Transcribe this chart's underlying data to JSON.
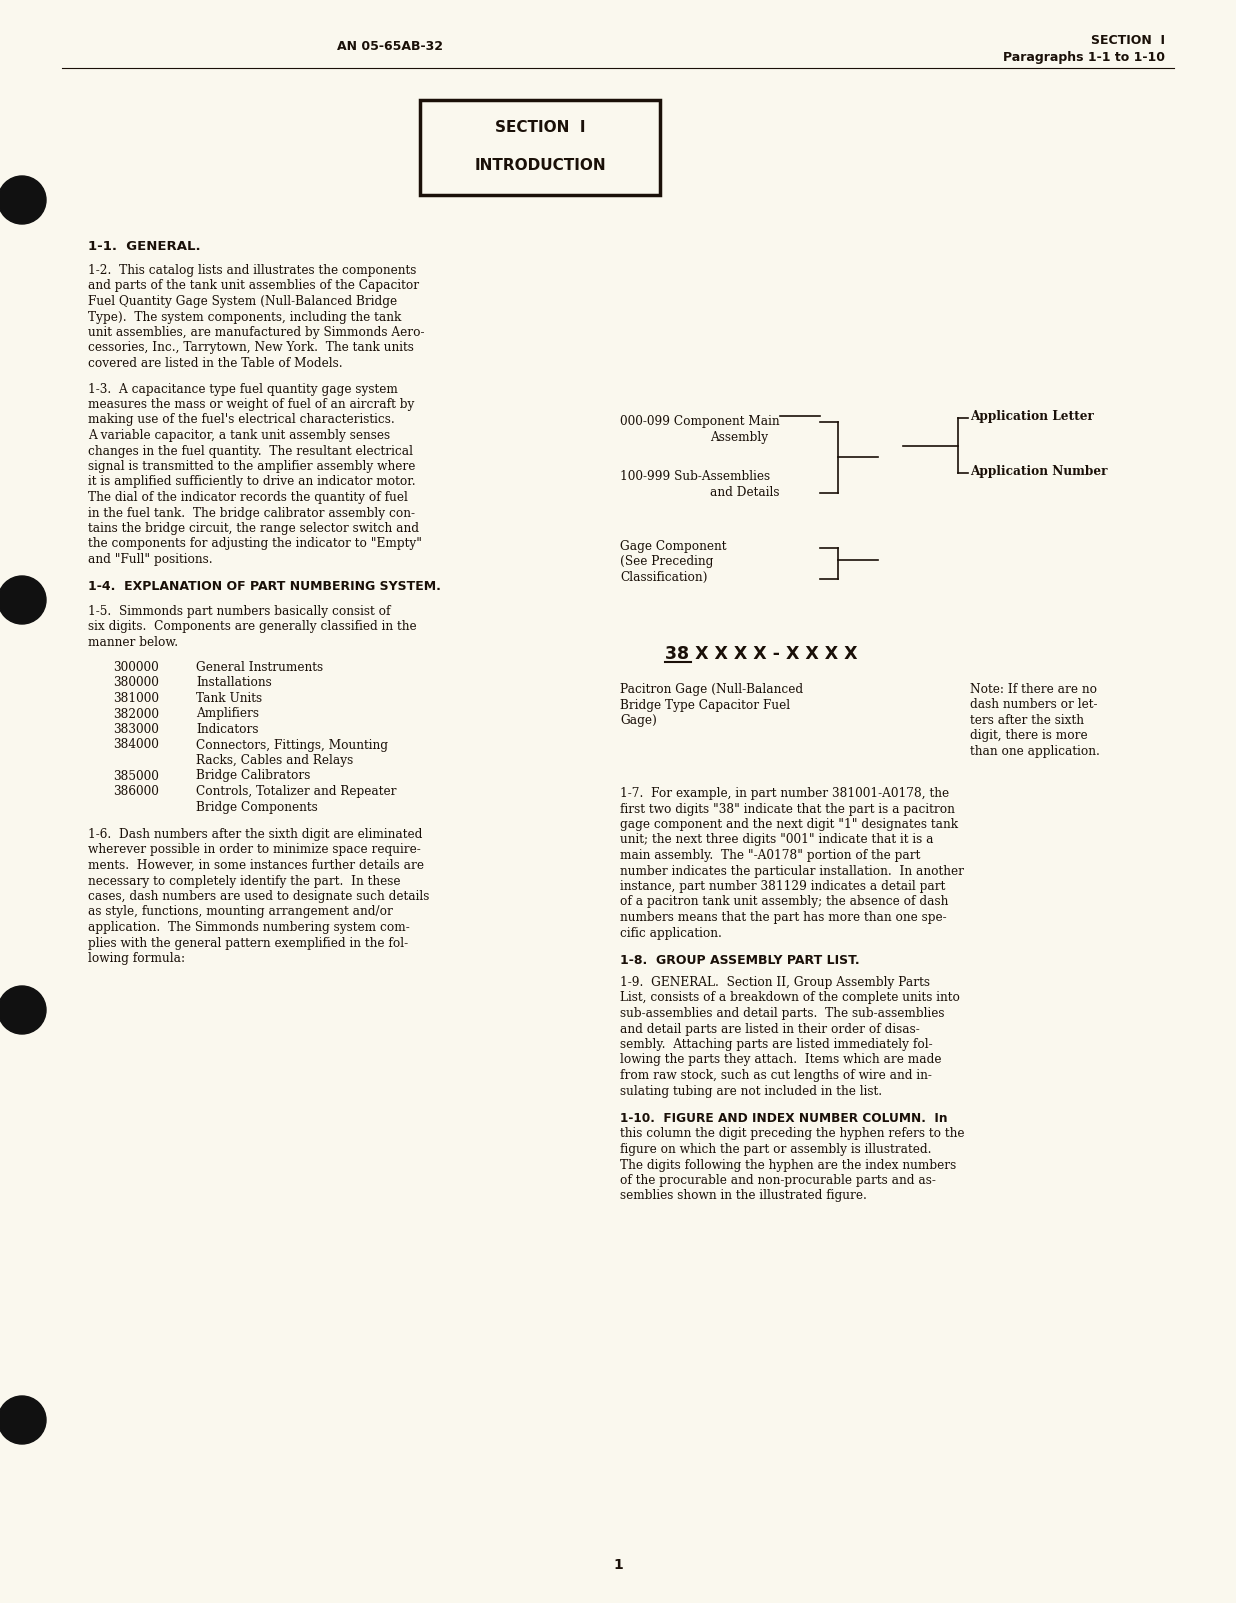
{
  "bg_color": "#FAF8EE",
  "text_color": "#1a1008",
  "header_left": "AN 05-65AB-32",
  "header_right_line1": "SECTION  I",
  "header_right_line2": "Paragraphs 1-1 to 1-10",
  "section_box_line1": "SECTION  I",
  "section_box_line2": "INTRODUCTION",
  "para_1_1_heading": "1-1.  GENERAL.",
  "para_1_2_lines": [
    "1-2.  This catalog lists and illustrates the components",
    "and parts of the tank unit assemblies of the Capacitor",
    "Fuel Quantity Gage System (Null-Balanced Bridge",
    "Type).  The system components, including the tank",
    "unit assemblies, are manufactured by Simmonds Aero-",
    "cessories, Inc., Tarrytown, New York.  The tank units",
    "covered are listed in the Table of Models."
  ],
  "para_1_3_lines": [
    "1-3.  A capacitance type fuel quantity gage system",
    "measures the mass or weight of fuel of an aircraft by",
    "making use of the fuel's electrical characteristics.",
    "A variable capacitor, a tank unit assembly senses",
    "changes in the fuel quantity.  The resultant electrical",
    "signal is transmitted to the amplifier assembly where",
    "it is amplified sufficiently to drive an indicator motor.",
    "The dial of the indicator records the quantity of fuel",
    "in the fuel tank.  The bridge calibrator assembly con-",
    "tains the bridge circuit, the range selector switch and",
    "the components for adjusting the indicator to \"Empty\"",
    "and \"Full\" positions."
  ],
  "para_1_4_heading": "1-4.  EXPLANATION OF PART NUMBERING SYSTEM.",
  "para_1_5_lines": [
    "1-5.  Simmonds part numbers basically consist of",
    "six digits.  Components are generally classified in the",
    "manner below."
  ],
  "part_numbers": [
    [
      "300000",
      "General Instruments",
      false
    ],
    [
      "380000",
      "Installations",
      false
    ],
    [
      "381000",
      "Tank Units",
      false
    ],
    [
      "382000",
      "Amplifiers",
      false
    ],
    [
      "383000",
      "Indicators",
      false
    ],
    [
      "384000",
      "Connectors, Fittings, Mounting",
      true
    ],
    [
      "384000_2",
      "    Racks, Cables and Relays",
      false
    ],
    [
      "385000",
      "Bridge Calibrators",
      false
    ],
    [
      "386000",
      "Controls, Totalizer and Repeater",
      true
    ],
    [
      "386000_2",
      "    Bridge Components",
      false
    ]
  ],
  "para_1_6_lines": [
    "1-6.  Dash numbers after the sixth digit are eliminated",
    "wherever possible in order to minimize space require-",
    "ments.  However, in some instances further details are",
    "necessary to completely identify the part.  In these",
    "cases, dash numbers are used to designate such details",
    "as style, functions, mounting arrangement and/or",
    "application.  The Simmonds numbering system com-",
    "plies with the general pattern exemplified in the fol-",
    "lowing formula:"
  ],
  "diag_top_left_1": "000-099 Component Main",
  "diag_top_left_2": "              Assembly",
  "diag_mid_left_1": "100-999 Sub-Assemblies",
  "diag_mid_left_2": "              and Details",
  "diag_bot_left_1": "Gage Component",
  "diag_bot_left_2": "(See Preceding",
  "diag_bot_left_3": "Classification)",
  "diag_app_letter": "Application Letter",
  "diag_app_number": "Application Number",
  "diag_formula": "38 X X X X - X X X X",
  "diag_paci_1": "Pacitron Gage (Null-Balanced",
  "diag_paci_2": "Bridge Type Capacitor Fuel",
  "diag_paci_3": "Gage)",
  "diag_note_1": "Note: If there are no",
  "diag_note_2": "dash numbers or let-",
  "diag_note_3": "ters after the sixth",
  "diag_note_4": "digit, there is more",
  "diag_note_5": "than one application.",
  "para_1_7_lines": [
    "1-7.  For example, in part number 381001-A0178, the",
    "first two digits \"38\" indicate that the part is a pacitron",
    "gage component and the next digit \"1\" designates tank",
    "unit; the next three digits \"001\" indicate that it is a",
    "main assembly.  The \"-A0178\" portion of the part",
    "number indicates the particular installation.  In another",
    "instance, part number 381129 indicates a detail part",
    "of a pacitron tank unit assembly; the absence of dash",
    "numbers means that the part has more than one spe-",
    "cific application."
  ],
  "para_1_8_heading": "1-8.  GROUP ASSEMBLY PART LIST.",
  "para_1_9_lines": [
    "1-9.  GENERAL.  Section II, Group Assembly Parts",
    "List, consists of a breakdown of the complete units into",
    "sub-assemblies and detail parts.  The sub-assemblies",
    "and detail parts are listed in their order of disas-",
    "sembly.  Attaching parts are listed immediately fol-",
    "lowing the parts they attach.  Items which are made",
    "from raw stock, such as cut lengths of wire and in-",
    "sulating tubing are not included in the list."
  ],
  "para_1_10_head": "1-10.  FIGURE AND INDEX NUMBER COLUMN.  In",
  "para_1_10_lines": [
    "this column the digit preceding the hyphen refers to the",
    "figure on which the part or assembly is illustrated.",
    "The digits following the hyphen are the index numbers",
    "of the procurable and non-procurable parts and as-",
    "semblies shown in the illustrated figure."
  ],
  "page_number": "1"
}
